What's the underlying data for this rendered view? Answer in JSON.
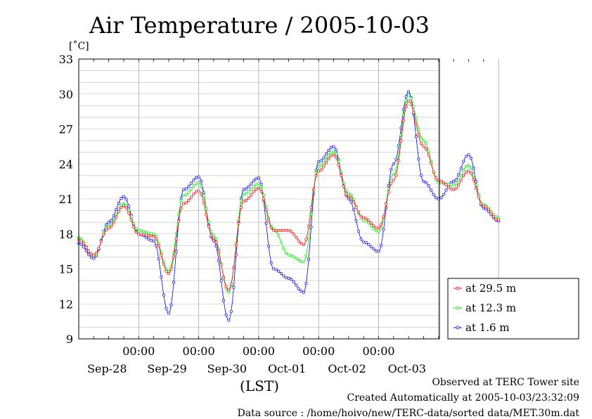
{
  "chart_data": {
    "type": "line",
    "title": "Air Temperature / 2005-10-03",
    "yunit": "[˚C]",
    "xlabel": "(LST)",
    "ylim": [
      9,
      33
    ],
    "yticks": [
      9,
      12,
      15,
      18,
      21,
      24,
      27,
      30,
      33
    ],
    "xlim": [
      "2005-09-27 00:00",
      "2005-10-04 00:00"
    ],
    "x_time_ticks": [
      "00:00",
      "00:00",
      "00:00",
      "00:00",
      "00:00"
    ],
    "x_date_labels": [
      "Sep-28",
      "Sep-29",
      "Sep-30",
      "Oct-01",
      "Oct-02",
      "Oct-03"
    ],
    "grid": true,
    "legend_position": "lower-right, outside plot",
    "x_days_from_sep27": [
      0.0,
      0.25,
      0.5,
      0.75,
      1.0,
      1.25,
      1.5,
      1.75,
      2.0,
      2.25,
      2.5,
      2.75,
      3.0,
      3.25,
      3.5,
      3.75,
      4.0,
      4.25,
      4.5,
      4.75,
      5.0,
      5.25,
      5.5,
      5.75,
      6.0,
      6.25,
      6.5,
      6.75,
      7.0
    ],
    "series": [
      {
        "name": "at 29.5 m",
        "color": "#ff0000",
        "values": [
          17.5,
          16.2,
          18.5,
          20.4,
          18.0,
          17.8,
          14.6,
          20.6,
          21.7,
          17.6,
          13.2,
          20.8,
          21.9,
          18.3,
          18.3,
          17.1,
          23.4,
          24.8,
          21.2,
          19.4,
          18.5,
          22.6,
          29.4,
          25.5,
          22.6,
          21.8,
          23.4,
          20.4,
          19.2
        ]
      },
      {
        "name": "at 12.3 m",
        "color": "#00ee00",
        "values": [
          17.7,
          16.1,
          18.7,
          20.6,
          18.3,
          18.0,
          14.8,
          21.3,
          22.4,
          17.9,
          13.0,
          21.4,
          22.3,
          18.4,
          16.2,
          15.6,
          23.8,
          25.1,
          21.5,
          19.2,
          18.2,
          23.1,
          29.9,
          26.0,
          22.4,
          22.2,
          23.9,
          20.5,
          19.4
        ]
      },
      {
        "name": "at 1.6 m",
        "color": "#0000ff",
        "values": [
          17.2,
          15.9,
          19.0,
          21.2,
          18.0,
          17.4,
          11.2,
          21.8,
          22.9,
          17.4,
          10.6,
          21.8,
          22.8,
          15.0,
          14.2,
          13.0,
          24.2,
          25.5,
          21.0,
          17.3,
          16.5,
          24.0,
          30.2,
          22.5,
          21.0,
          22.5,
          24.8,
          20.2,
          19.1
        ]
      }
    ]
  },
  "footer": {
    "observed": "Observed at TERC Tower site",
    "created": "Created Automatically at 2005-10-03/23:32:09",
    "source": "Data source : /home/hoivo/new/TERC-data/sorted  data/MET.30m.dat"
  }
}
